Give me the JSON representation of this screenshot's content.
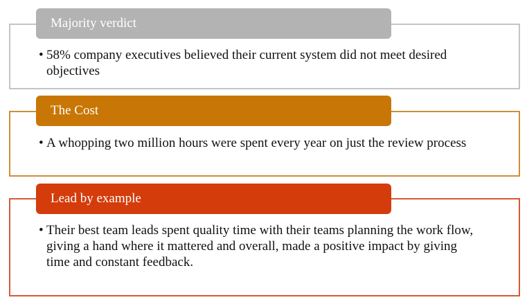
{
  "sections": [
    {
      "title": "Majority verdict",
      "bullet": "•",
      "text": "58% company executives believed their current system did not meet desired objectives",
      "header_color": "#b3b3b3",
      "border_color": "#c4c4c4"
    },
    {
      "title": "The Cost",
      "bullet": "•",
      "text": "A whopping two million hours were spent every year on just the review process",
      "header_color": "#c87606",
      "border_color": "#cc8f3a"
    },
    {
      "title": "Lead by example",
      "bullet": "•",
      "text": "Their best team leads spent quality time with their teams planning the work flow, giving a hand where it mattered and overall, made a positive impact by giving time and constant feedback.",
      "header_color": "#d43c0b",
      "border_color": "#d55a36"
    }
  ]
}
